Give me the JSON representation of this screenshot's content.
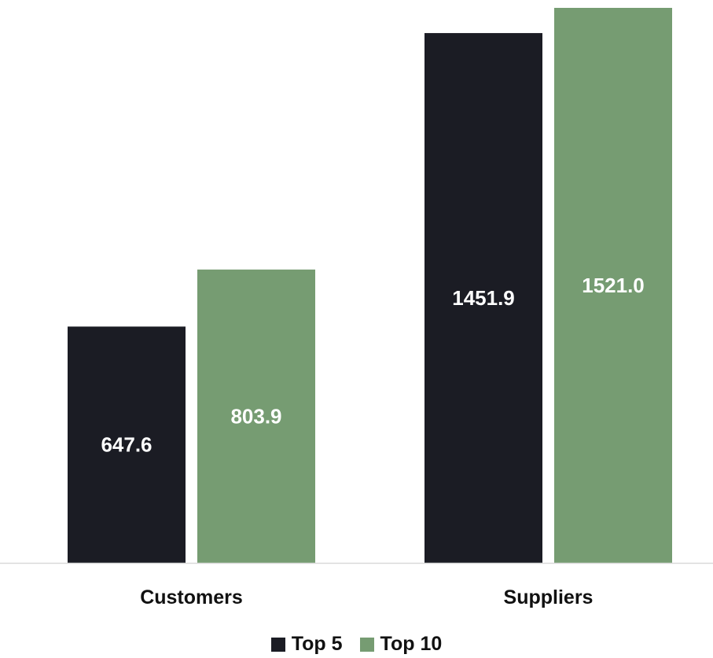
{
  "chart_data": {
    "type": "bar",
    "categories": [
      "Customers",
      "Suppliers"
    ],
    "series": [
      {
        "name": "Top 5",
        "values": [
          647.6,
          1451.9
        ],
        "labels": [
          "647.6",
          "1451.9"
        ],
        "color": "#1b1c24"
      },
      {
        "name": "Top 10",
        "values": [
          803.9,
          1521.0
        ],
        "labels": [
          "803.9",
          "1521.0"
        ],
        "color": "#769c72"
      }
    ],
    "title": "",
    "xlabel": "",
    "ylabel": "",
    "ylim": [
      0,
      1521.0
    ],
    "grid": false,
    "legend": "bottom-center",
    "axis_color": "#d9d9d9"
  }
}
